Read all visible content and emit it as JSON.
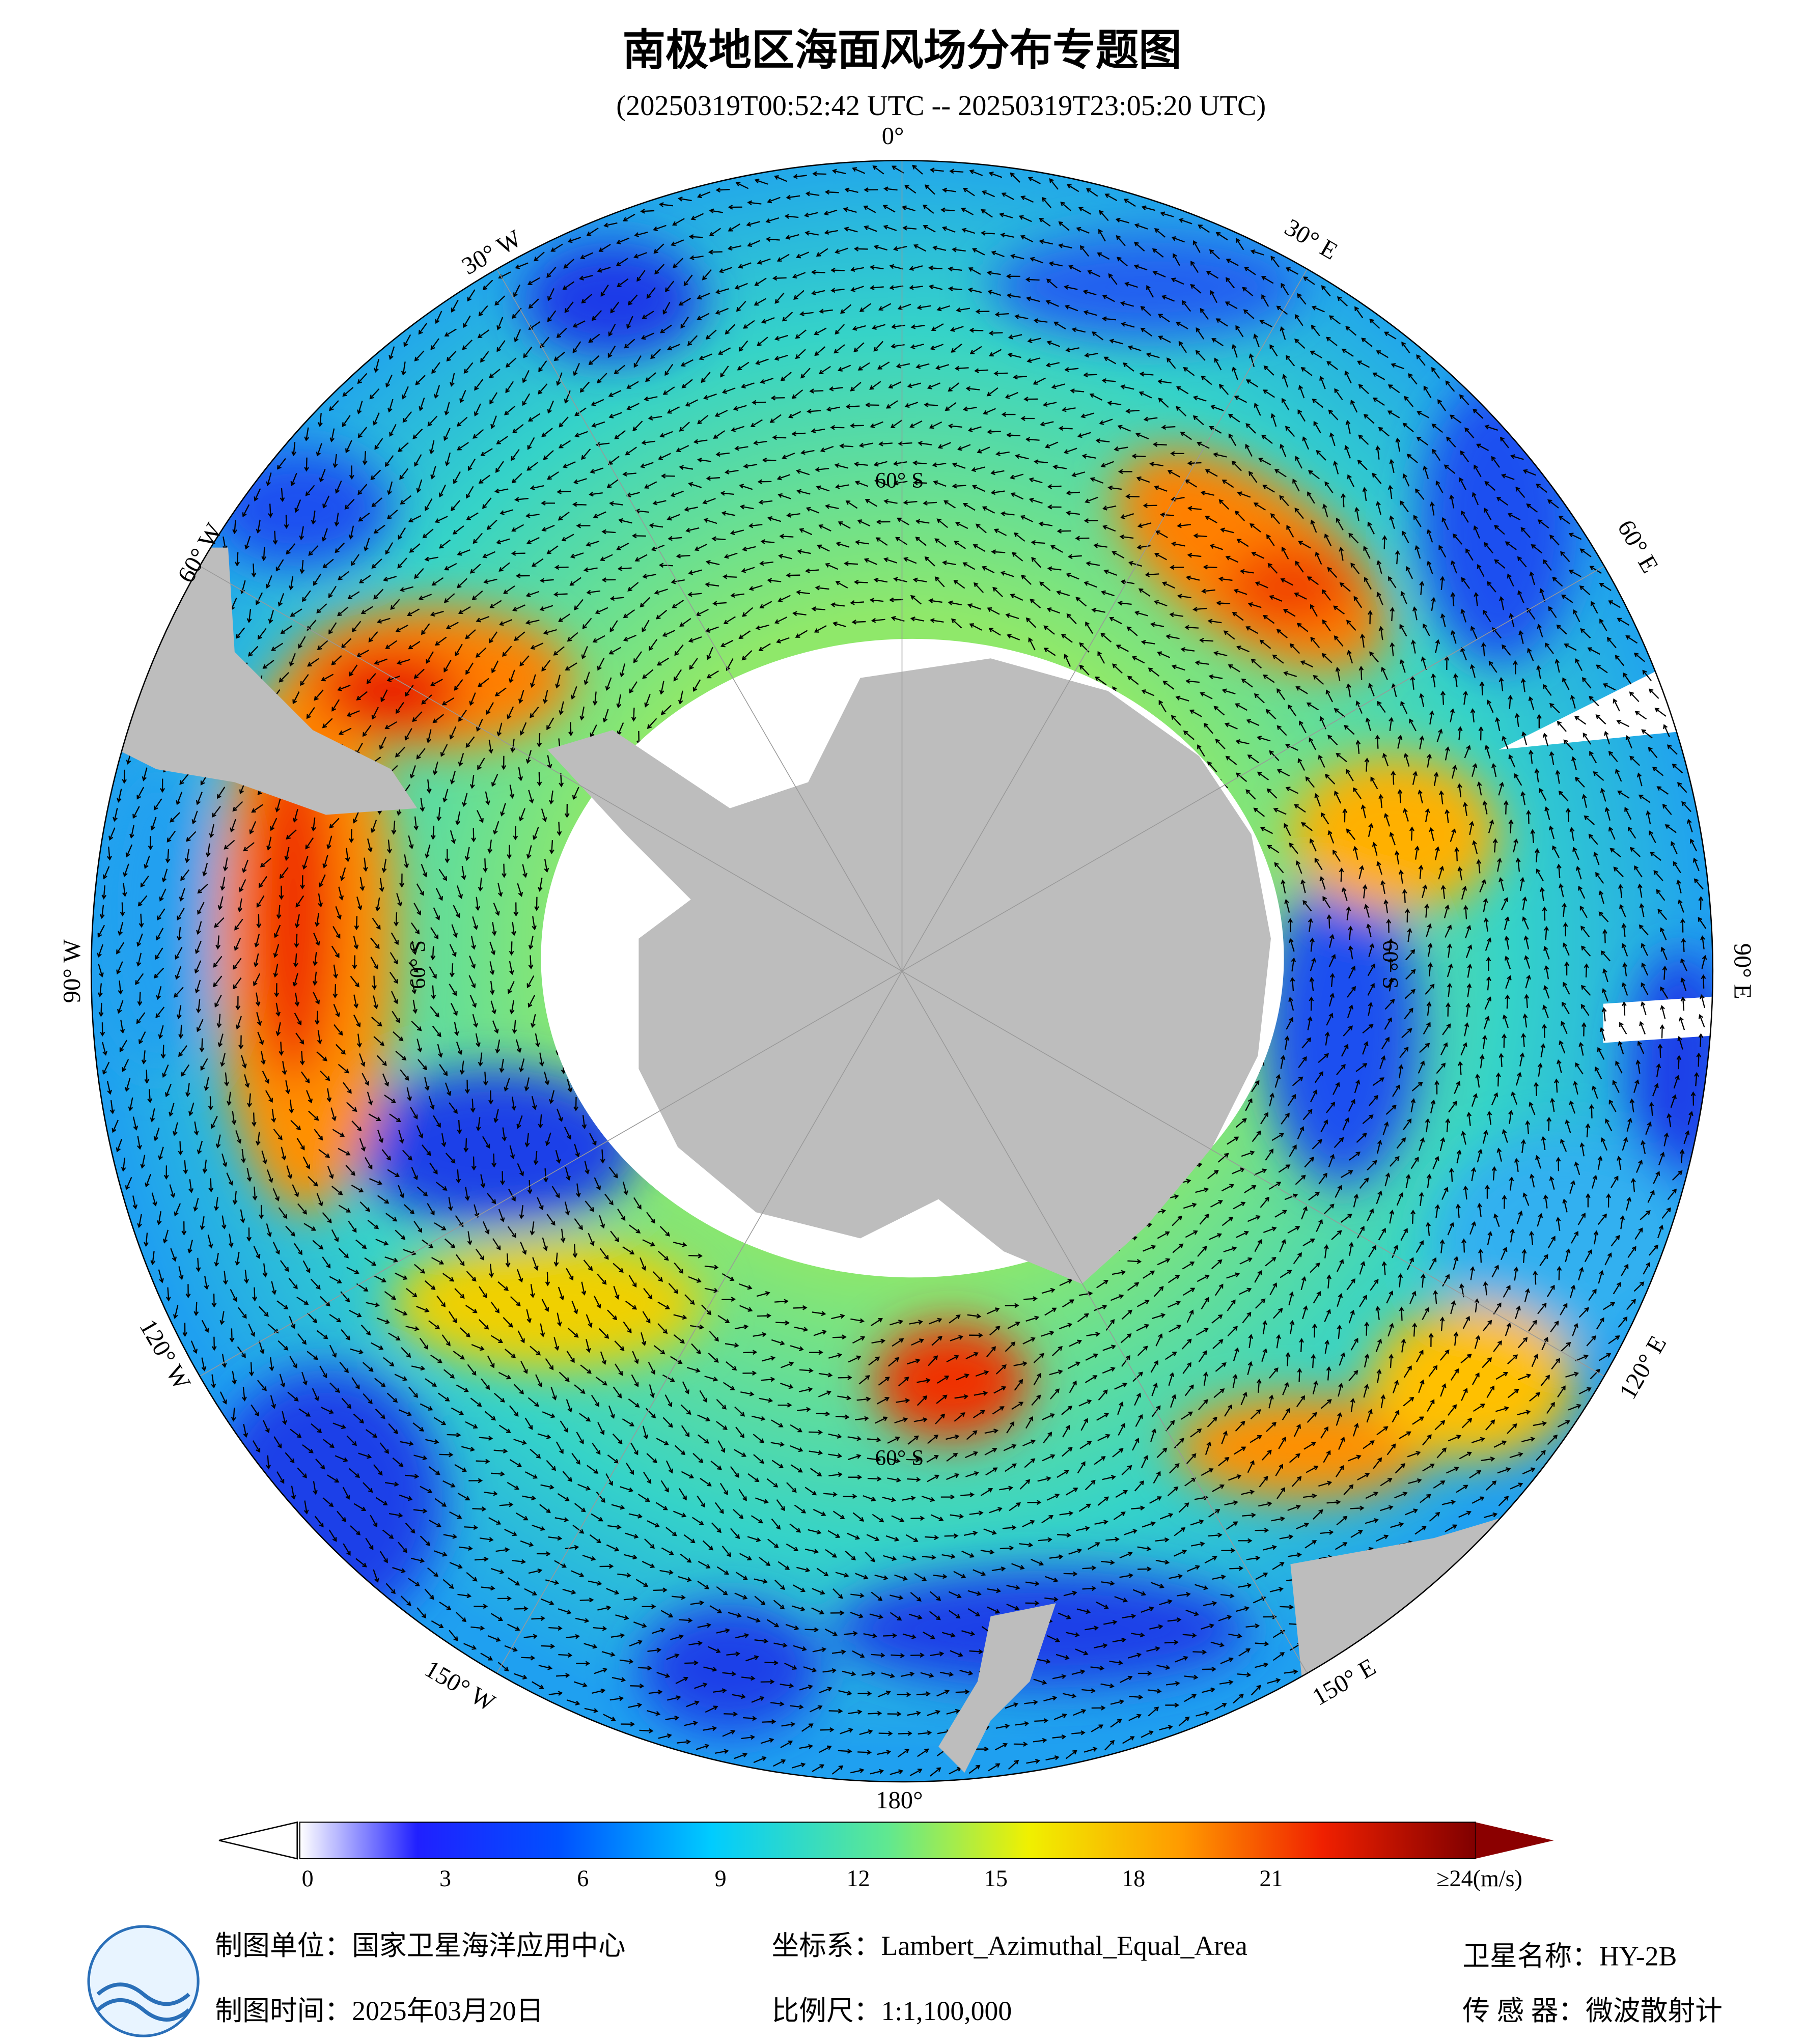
{
  "header": {
    "title": "南极地区海面风场分布专题图",
    "subtitle": "(20250319T00:52:42 UTC -- 20250319T23:05:20 UTC)"
  },
  "map": {
    "longitude_labels": [
      "0°",
      "30° E",
      "60° E",
      "90° E",
      "120° E",
      "150° E",
      "180°",
      "150° W",
      "120° W",
      "90° W",
      "60° W",
      "30° W"
    ],
    "latitude_labels": [
      "60° S",
      "60° S",
      "60° S",
      "60° S"
    ]
  },
  "colorbar": {
    "ticks": [
      "0",
      "3",
      "6",
      "9",
      "12",
      "15",
      "18",
      "21"
    ],
    "max_label": "≥24(m/s)"
  },
  "footer": {
    "producer": "制图单位：国家卫星海洋应用中心",
    "date": "制图时间：2025年03月20日",
    "projection": "坐标系：Lambert_Azimuthal_Equal_Area",
    "scale": "比例尺：1:1,100,000",
    "satellite": "卫星名称：HY-2B",
    "sensor": "传 感 器：微波散射计"
  }
}
